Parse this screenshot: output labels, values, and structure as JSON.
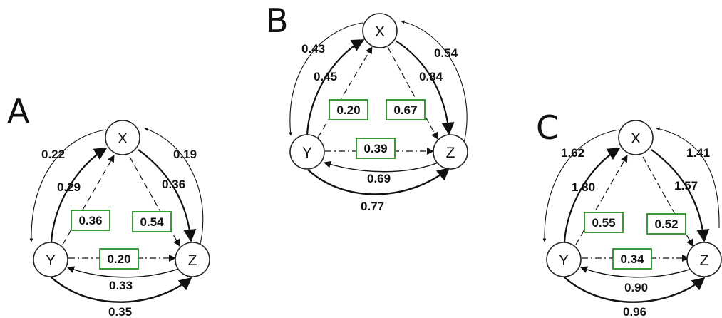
{
  "colors": {
    "ink": "#111111",
    "box_border": "#3a9a3a"
  },
  "panels": [
    {
      "letter": "A",
      "nodes": {
        "x": "X",
        "y": "Y",
        "z": "Z"
      },
      "outer": {
        "x_to_y": "0.22",
        "z_to_x": "0.19",
        "z_to_y": "0.33",
        "y_to_z": "0.35"
      },
      "inner": {
        "y_to_x": "0.29",
        "x_to_z": "0.36"
      },
      "boxes": {
        "xy": "0.36",
        "xz": "0.54",
        "yz": "0.20"
      }
    },
    {
      "letter": "B",
      "nodes": {
        "x": "X",
        "y": "Y",
        "z": "Z"
      },
      "outer": {
        "x_to_y": "0.43",
        "z_to_x": "0.54",
        "z_to_y": "0.69",
        "y_to_z": "0.77"
      },
      "inner": {
        "y_to_x": "0.45",
        "x_to_z": "0.84"
      },
      "boxes": {
        "xy": "0.20",
        "xz": "0.67",
        "yz": "0.39"
      }
    },
    {
      "letter": "C",
      "nodes": {
        "x": "X",
        "y": "Y",
        "z": "Z"
      },
      "outer": {
        "x_to_y": "1.62",
        "z_to_x": "1.41",
        "z_to_y": "0.90",
        "y_to_z": "0.96"
      },
      "inner": {
        "y_to_x": "1.80",
        "x_to_z": "1.57"
      },
      "boxes": {
        "xy": "0.55",
        "xz": "0.52",
        "yz": "0.34"
      }
    }
  ]
}
